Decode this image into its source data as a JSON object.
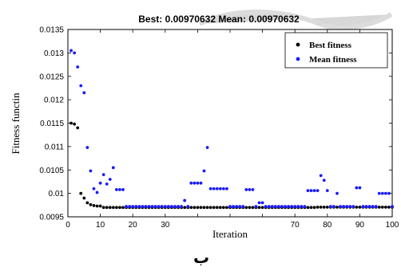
{
  "caption": "ب",
  "chart_data": {
    "type": "scatter",
    "title": "Best: 0.00970632  Mean: 0.00970632",
    "xlabel": "Iteration",
    "ylabel": "Fitness functin",
    "xlim": [
      0,
      100
    ],
    "ylim": [
      0.0095,
      0.0135
    ],
    "xticks": [
      "0",
      "10",
      "20",
      "30",
      "40",
      "50",
      "60",
      "70",
      "80",
      "90",
      "100"
    ],
    "xtick_labels_shown": [
      "0",
      "10",
      "20",
      "30",
      "",
      "",
      "",
      "70",
      "80",
      "90",
      "100"
    ],
    "yticks": [
      "0.0095",
      "0.01",
      "0.0105",
      "0.011",
      "0.0115",
      "0.012",
      "0.0125",
      "0.013",
      "0.0135"
    ],
    "grid": false,
    "legend_position": "top-right",
    "colors": {
      "best": "#000000",
      "mean": "#1a1aff"
    },
    "series": [
      {
        "name": "Best fitness",
        "color": "#000000",
        "points": [
          [
            1,
            0.0115
          ],
          [
            2,
            0.01148
          ],
          [
            3,
            0.0114
          ],
          [
            4,
            0.01
          ],
          [
            5,
            0.0099
          ],
          [
            6,
            0.0098
          ],
          [
            7,
            0.00976
          ],
          [
            8,
            0.00974
          ],
          [
            9,
            0.00973
          ],
          [
            10,
            0.00973
          ]
        ],
        "constant_from": 11,
        "constant_to": 100,
        "constant_value": 0.0097,
        "tail_from": 77,
        "tail_value": 0.009707
      },
      {
        "name": "Mean fitness",
        "color": "#1a1aff",
        "points": [
          [
            1,
            0.01305
          ],
          [
            2,
            0.013
          ],
          [
            3,
            0.0127
          ],
          [
            4,
            0.0123
          ],
          [
            5,
            0.01215
          ],
          [
            6,
            0.01098
          ],
          [
            7,
            0.01048
          ],
          [
            8,
            0.0101
          ],
          [
            9,
            0.01002
          ],
          [
            10,
            0.01022
          ],
          [
            11,
            0.0104
          ],
          [
            12,
            0.0102
          ],
          [
            13,
            0.0103
          ],
          [
            14,
            0.01055
          ],
          [
            15,
            0.01008
          ],
          [
            16,
            0.01008
          ],
          [
            17,
            0.01008
          ],
          [
            36,
            0.00985
          ],
          [
            38,
            0.01022
          ],
          [
            39,
            0.01022
          ],
          [
            40,
            0.01022
          ],
          [
            41,
            0.01022
          ],
          [
            42,
            0.01048
          ],
          [
            43,
            0.01098
          ],
          [
            44,
            0.0101
          ],
          [
            45,
            0.0101
          ],
          [
            46,
            0.0101
          ],
          [
            47,
            0.0101
          ],
          [
            48,
            0.0101
          ],
          [
            49,
            0.0101
          ],
          [
            55,
            0.01008
          ],
          [
            56,
            0.01008
          ],
          [
            57,
            0.01008
          ],
          [
            59,
            0.0098
          ],
          [
            60,
            0.0098
          ],
          [
            74,
            0.01006
          ],
          [
            75,
            0.01006
          ],
          [
            76,
            0.01006
          ],
          [
            77,
            0.01006
          ],
          [
            78,
            0.01038
          ],
          [
            79,
            0.01028
          ],
          [
            80,
            0.01006
          ],
          [
            83,
            0.01
          ],
          [
            89,
            0.01012
          ],
          [
            90,
            0.01012
          ],
          [
            96,
            0.01
          ],
          [
            97,
            0.01
          ],
          [
            98,
            0.01
          ],
          [
            99,
            0.01
          ]
        ],
        "baseline_from": 11,
        "baseline_to": 100,
        "baseline_value": 0.00972
      }
    ]
  }
}
